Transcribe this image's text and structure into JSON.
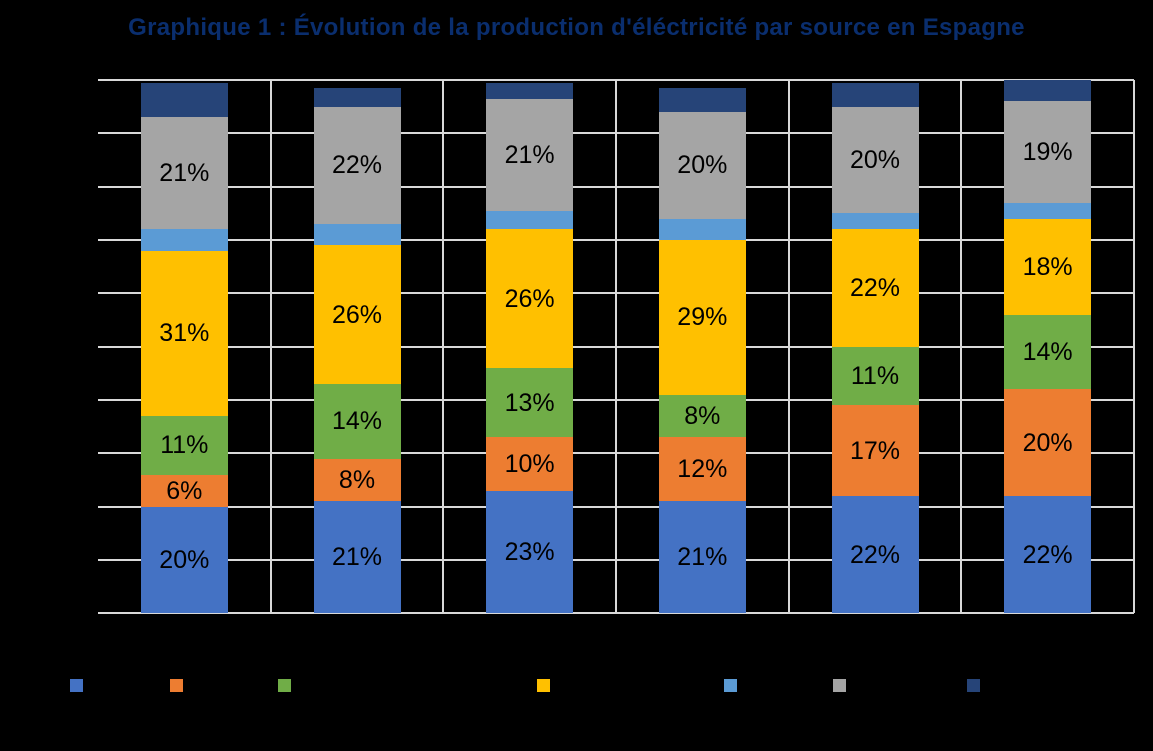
{
  "title": {
    "text": "Graphique 1 : Évolution de la production d'éléctricité par source en Espagne",
    "color": "#0A2E6E"
  },
  "background_color": "#000000",
  "chart_data": {
    "type": "bar",
    "variant": "stacked-100-percent-column",
    "title": "Graphique 1 : Évolution de la production d'éléctricité par source en Espagne",
    "categories": [
      "",
      "",
      "",
      "",
      "",
      ""
    ],
    "category_axis_labels_visible": false,
    "value_axis_labels_visible": false,
    "ylim": [
      0,
      100
    ],
    "gridlines": {
      "horizontal_step_percent": 10,
      "vertical_category_separators": true,
      "color": "#D9D9D9"
    },
    "data_label_format": "{value}%",
    "series": [
      {
        "name": "blue",
        "color": "#4472C4",
        "labels_visible": true,
        "values": [
          20,
          21,
          23,
          21,
          22,
          22
        ]
      },
      {
        "name": "orange",
        "color": "#ED7D31",
        "labels_visible": true,
        "values": [
          6,
          8,
          10,
          12,
          17,
          20
        ]
      },
      {
        "name": "green",
        "color": "#70AD47",
        "labels_visible": true,
        "values": [
          11,
          14,
          13,
          8,
          11,
          14
        ]
      },
      {
        "name": "yellow",
        "color": "#FFC000",
        "labels_visible": true,
        "values": [
          31,
          26,
          26,
          29,
          22,
          18
        ]
      },
      {
        "name": "lightblue",
        "color": "#5B9BD5",
        "labels_visible": false,
        "values": [
          4,
          4,
          3.5,
          4,
          3,
          3
        ]
      },
      {
        "name": "gray",
        "color": "#A5A5A5",
        "labels_visible": true,
        "values": [
          21,
          22,
          21,
          20,
          20,
          19
        ]
      },
      {
        "name": "navy",
        "color": "#264478",
        "labels_visible": false,
        "values": [
          6.5,
          3.5,
          3,
          4.5,
          4.5,
          4
        ]
      }
    ],
    "legend": {
      "position": "bottom",
      "labels_visible": false,
      "order": "same-as-series"
    }
  }
}
